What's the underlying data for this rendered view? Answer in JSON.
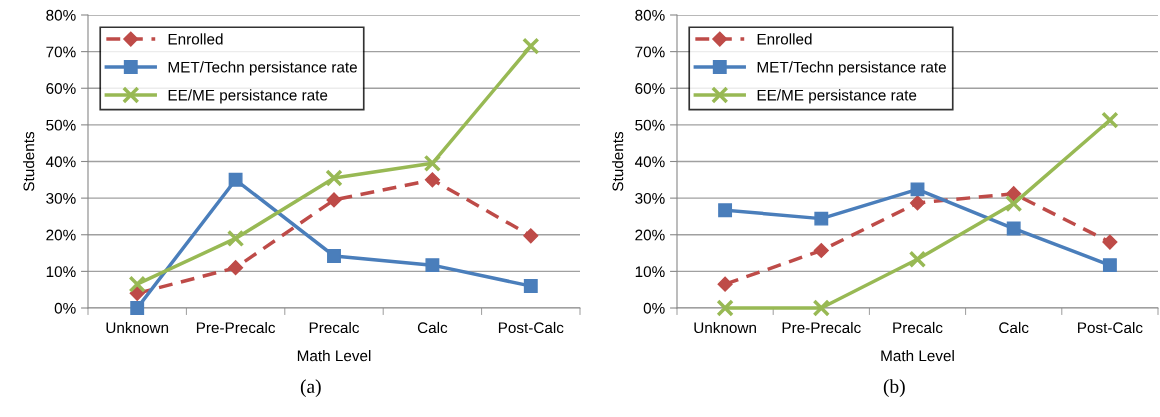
{
  "chart_data": [
    {
      "type": "line",
      "xlabel": "Math Level",
      "ylabel": "Students",
      "annotations": [
        "(a)"
      ],
      "categories": [
        "Unknown",
        "Pre-Precalc",
        "Precalc",
        "Calc",
        "Post-Calc"
      ],
      "ylim": [
        0,
        80
      ],
      "yticks": [
        {
          "value": 0,
          "label": "0%"
        },
        {
          "value": 10,
          "label": "10%"
        },
        {
          "value": 20,
          "label": "20%"
        },
        {
          "value": 30,
          "label": "30%"
        },
        {
          "value": 40,
          "label": "40%"
        },
        {
          "value": 50,
          "label": "50%"
        },
        {
          "value": 60,
          "label": "60%"
        },
        {
          "value": 70,
          "label": "70%"
        },
        {
          "value": 80,
          "label": "80%"
        }
      ],
      "grid": "y",
      "legend": "top left",
      "series": [
        {
          "name": "Enrolled",
          "color": "#be4b48",
          "marker": "diamond",
          "line_style": "dashed",
          "values": [
            4,
            11,
            29.5,
            35,
            19.7
          ]
        },
        {
          "name": "MET/Techn persistance rate",
          "color": "#4a7ebb",
          "marker": "square",
          "line_style": "solid",
          "values": [
            0,
            35,
            14.2,
            11.7,
            6
          ]
        },
        {
          "name": "EE/ME persistance rate",
          "color": "#98b954",
          "marker": "cross",
          "line_style": "solid",
          "values": [
            6.5,
            19,
            35.5,
            39.5,
            71.5
          ]
        }
      ]
    },
    {
      "type": "line",
      "xlabel": "Math Level",
      "ylabel": "Students",
      "annotations": [
        "(b)"
      ],
      "categories": [
        "Unknown",
        "Pre-Precalc",
        "Precalc",
        "Calc",
        "Post-Calc"
      ],
      "ylim": [
        0,
        80
      ],
      "yticks": [
        {
          "value": 0,
          "label": "0%"
        },
        {
          "value": 10,
          "label": "10%"
        },
        {
          "value": 20,
          "label": "20%"
        },
        {
          "value": 30,
          "label": "30%"
        },
        {
          "value": 40,
          "label": "40%"
        },
        {
          "value": 50,
          "label": "50%"
        },
        {
          "value": 60,
          "label": "60%"
        },
        {
          "value": 70,
          "label": "70%"
        },
        {
          "value": 80,
          "label": "80%"
        }
      ],
      "grid": "y",
      "legend": "top left",
      "series": [
        {
          "name": "Enrolled",
          "color": "#be4b48",
          "marker": "diamond",
          "line_style": "dashed",
          "values": [
            6.5,
            15.7,
            28.7,
            31.2,
            18
          ]
        },
        {
          "name": "MET/Techn persistance rate",
          "color": "#4a7ebb",
          "marker": "square",
          "line_style": "solid",
          "values": [
            26.7,
            24.4,
            32.4,
            21.7,
            11.7
          ]
        },
        {
          "name": "EE/ME persistance rate",
          "color": "#98b954",
          "marker": "cross",
          "line_style": "solid",
          "values": [
            0,
            0,
            13.3,
            28.5,
            51.3
          ]
        }
      ]
    }
  ]
}
